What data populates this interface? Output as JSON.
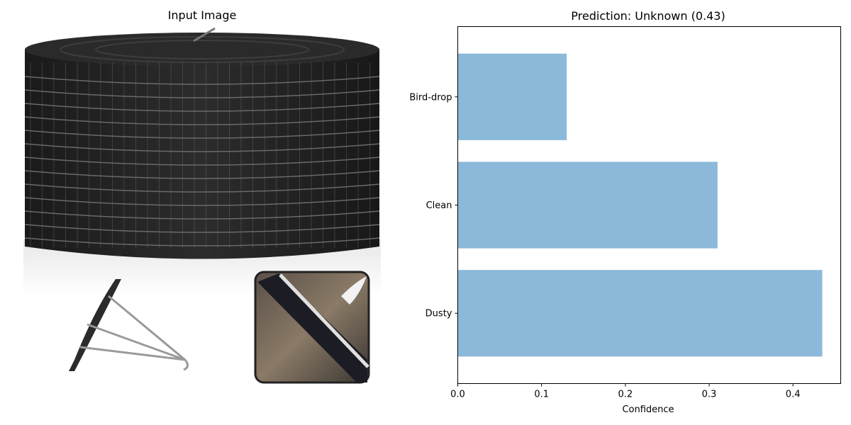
{
  "left_panel": {
    "title": "Input Image"
  },
  "chart_data": {
    "type": "bar",
    "orientation": "horizontal",
    "title": "Prediction: Unknown (0.43)",
    "categories": [
      "Dusty",
      "Clean",
      "Bird-drop"
    ],
    "values": [
      0.435,
      0.31,
      0.13
    ],
    "xlabel": "Confidence",
    "ylabel": "",
    "xlim": [
      0,
      0.457
    ],
    "xticks": [
      "0.0",
      "0.1",
      "0.2",
      "0.3",
      "0.4"
    ],
    "grid": false,
    "bar_color": "#8cb9d9"
  }
}
